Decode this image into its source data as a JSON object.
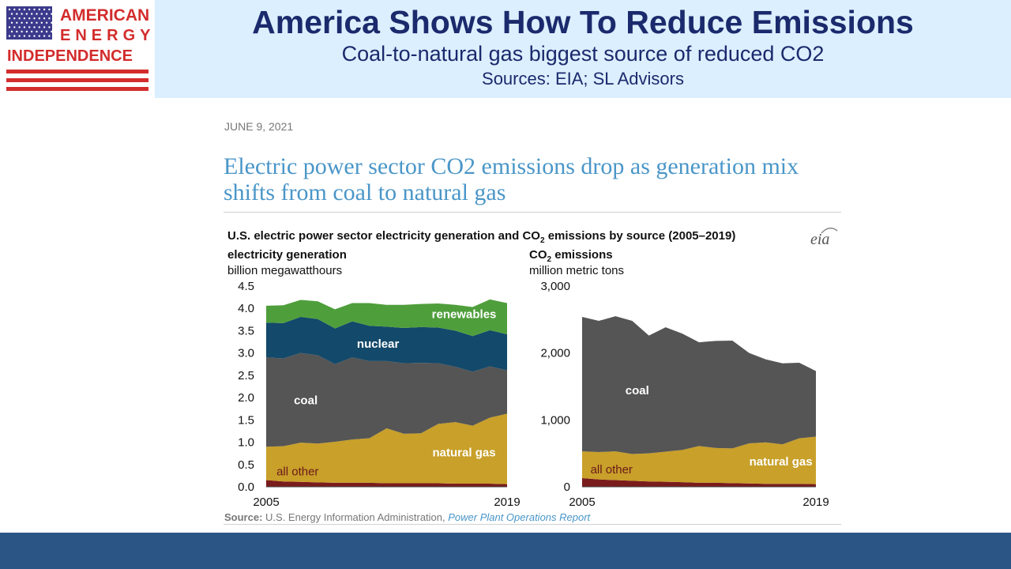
{
  "header": {
    "logo": {
      "line1": "AMERICAN",
      "line2": "ENERGY",
      "line3": "INDEPENDENCE"
    },
    "title": "America Shows How To Reduce Emissions",
    "subtitle": "Coal-to-natural gas biggest source of reduced CO2",
    "sources": "Sources: EIA; SL Advisors"
  },
  "article": {
    "date": "JUNE 9, 2021",
    "title": "Electric power sector CO2 emissions drop as generation mix shifts from coal to natural gas"
  },
  "figure": {
    "title_prefix": "U.S. electric power sector electricity generation and CO",
    "title_sub": "2",
    "title_suffix": " emissions by source (2005–2019)",
    "logo_text": "eia",
    "source_label": "Source:",
    "source_text": " U.S. Energy Information Administration, ",
    "source_link": "Power Plant Operations Report"
  },
  "colors": {
    "renewables": "#4f9e3c",
    "nuclear": "#13496a",
    "coal": "#555555",
    "natural_gas": "#c8a02a",
    "all_other": "#7a1c1c",
    "header_bg": "#dcefff",
    "footer_bg": "#2a5585"
  },
  "chart_data": [
    {
      "type": "area",
      "stacked": true,
      "title": "electricity generation",
      "unit": "billion megawatthours",
      "x": [
        2005,
        2006,
        2007,
        2008,
        2009,
        2010,
        2011,
        2012,
        2013,
        2014,
        2015,
        2016,
        2017,
        2018,
        2019
      ],
      "xticks": [
        "2005",
        "2019"
      ],
      "yticks": [
        "0.0",
        "0.5",
        "1.0",
        "1.5",
        "2.0",
        "2.5",
        "3.0",
        "3.5",
        "4.0",
        "4.5"
      ],
      "ylim": [
        0,
        4.5
      ],
      "series": [
        {
          "name": "all other",
          "key": "all_other",
          "values": [
            0.15,
            0.12,
            0.11,
            0.1,
            0.09,
            0.09,
            0.09,
            0.08,
            0.08,
            0.08,
            0.08,
            0.07,
            0.07,
            0.07,
            0.06
          ]
        },
        {
          "name": "natural gas",
          "key": "natural_gas",
          "values": [
            0.75,
            0.79,
            0.88,
            0.87,
            0.92,
            0.97,
            1.0,
            1.23,
            1.11,
            1.12,
            1.33,
            1.38,
            1.3,
            1.48,
            1.58
          ]
        },
        {
          "name": "coal",
          "key": "coal",
          "values": [
            2.0,
            1.97,
            2.01,
            1.98,
            1.74,
            1.84,
            1.73,
            1.51,
            1.58,
            1.58,
            1.36,
            1.24,
            1.21,
            1.15,
            0.97
          ]
        },
        {
          "name": "nuclear",
          "key": "nuclear",
          "values": [
            0.78,
            0.79,
            0.81,
            0.81,
            0.8,
            0.81,
            0.79,
            0.77,
            0.79,
            0.8,
            0.8,
            0.81,
            0.8,
            0.81,
            0.81
          ]
        },
        {
          "name": "renewables",
          "key": "renewables",
          "values": [
            0.38,
            0.4,
            0.38,
            0.4,
            0.43,
            0.41,
            0.51,
            0.49,
            0.52,
            0.52,
            0.54,
            0.58,
            0.65,
            0.69,
            0.7
          ]
        }
      ],
      "label_positions": [
        {
          "name": "renewables",
          "x": 2016.5,
          "y": 3.78
        },
        {
          "name": "nuclear",
          "x": 2011.5,
          "y": 3.12
        },
        {
          "name": "coal",
          "x": 2007.3,
          "y": 1.85
        },
        {
          "name": "natural gas",
          "x": 2016.5,
          "y": 0.68
        },
        {
          "name": "all other",
          "x": 2005.6,
          "y": 0.26
        }
      ]
    },
    {
      "type": "area",
      "stacked": true,
      "title": "CO2 emissions",
      "unit": "million metric tons",
      "x": [
        2005,
        2006,
        2007,
        2008,
        2009,
        2010,
        2011,
        2012,
        2013,
        2014,
        2015,
        2016,
        2017,
        2018,
        2019
      ],
      "xticks": [
        "2005",
        "2019"
      ],
      "yticks": [
        "0",
        "1,000",
        "2,000",
        "3,000"
      ],
      "ylim": [
        0,
        3000
      ],
      "series": [
        {
          "name": "all other",
          "key": "all_other",
          "values": [
            130,
            110,
            100,
            90,
            80,
            75,
            70,
            60,
            60,
            55,
            50,
            45,
            45,
            45,
            40
          ]
        },
        {
          "name": "natural gas",
          "key": "natural_gas",
          "values": [
            400,
            410,
            430,
            400,
            420,
            450,
            480,
            550,
            520,
            520,
            600,
            620,
            590,
            680,
            710
          ]
        },
        {
          "name": "coal",
          "key": "coal",
          "values": [
            2010,
            1960,
            2020,
            1990,
            1760,
            1860,
            1740,
            1550,
            1600,
            1610,
            1350,
            1240,
            1210,
            1130,
            980
          ]
        }
      ],
      "label_positions": [
        {
          "name": "coal",
          "x": 2008.3,
          "y": 1380
        },
        {
          "name": "natural gas",
          "x": 2016.9,
          "y": 320
        },
        {
          "name": "all other",
          "x": 2005.5,
          "y": 200
        }
      ]
    }
  ]
}
